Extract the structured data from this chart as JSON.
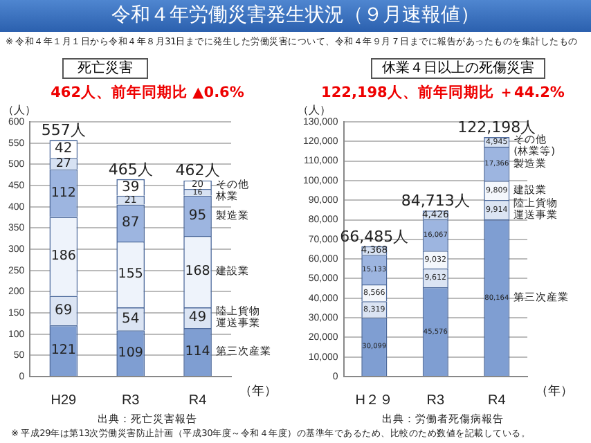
{
  "chart_data": [
    {
      "type": "other",
      "title": "令和４年労働災害発生状況（９月速報値）",
      "annotations": [
        "※ 令和４年１月１日から令和４年８月31日までに発生した労働災害について、令和４年９月７日までに報告があったものを集計したもの",
        "※ 平成29年は第13次労働災害防止計画（平成30年度～令和４年度）の基準年であるため、比較のため数値を記載している。"
      ]
    },
    {
      "type": "bar",
      "title": "死亡災害",
      "subtitle": "462人、前年同期比 ▲0.6%",
      "ylabel": "（人）",
      "xlabel": "（年）",
      "categories": [
        "H29",
        "R3",
        "R4"
      ],
      "stacked": true,
      "grid": "y",
      "data_labels": true,
      "legend": "right",
      "series": [
        {
          "name": "第三次産業",
          "color": "#7f9ed2",
          "values": [
            121,
            109,
            114
          ]
        },
        {
          "name": "陸上貨物運送事業",
          "color": "#dbe4f3",
          "values": [
            69,
            54,
            49
          ]
        },
        {
          "name": "建設業",
          "color": "#eef3fb",
          "values": [
            186,
            155,
            168
          ]
        },
        {
          "name": "製造業",
          "color": "#9db5e0",
          "values": [
            112,
            87,
            95
          ]
        },
        {
          "name": "林業",
          "color": "#d7e2f3",
          "values": [
            27,
            21,
            16
          ]
        },
        {
          "name": "その他",
          "color": "#ffffff",
          "values": [
            42,
            39,
            20
          ]
        }
      ],
      "totals": [
        "557人",
        "465人",
        "462人"
      ],
      "ylim": [
        0,
        600
      ],
      "yticks": [
        0,
        50,
        100,
        150,
        200,
        250,
        300,
        350,
        400,
        450,
        500,
        550,
        600
      ],
      "annotations": [
        "出典：死亡災害報告"
      ]
    },
    {
      "type": "bar",
      "title": "休業４日以上の死傷災害",
      "subtitle": "122,198人、前年同期比 ＋44.2%",
      "ylabel": "（人）",
      "xlabel": "（年）",
      "categories": [
        "H２９",
        "R3",
        "R4"
      ],
      "stacked": true,
      "grid": "y",
      "legend": "right",
      "series": [
        {
          "name": "第三次産業",
          "color": "#7f9ed2",
          "values": [
            30099,
            45576,
            80164
          ],
          "value_labels": [
            "30,099",
            "45,576",
            "80,164"
          ]
        },
        {
          "name": "陸上貨物運送事業",
          "color": "#dbe4f3",
          "values": [
            8319,
            9612,
            9914
          ],
          "value_labels": [
            "8,319",
            "9,612",
            "9,914"
          ]
        },
        {
          "name": "建設業",
          "color": "#f4f7fc",
          "values": [
            8566,
            9032,
            9809
          ],
          "value_labels": [
            "8,566",
            "9,032",
            "9,809"
          ]
        },
        {
          "name": "製造業",
          "color": "#9db5e0",
          "values": [
            15133,
            16067,
            17366
          ],
          "value_labels": [
            "15,133",
            "16,067",
            "17,366"
          ]
        },
        {
          "name": "その他(林業等)",
          "color": "#d7e2f3",
          "values": [
            4368,
            4426,
            4945
          ],
          "value_labels": [
            "4,368",
            "4,426",
            "4,945"
          ]
        }
      ],
      "totals": [
        "66,485人",
        "84,713人",
        "122,198人"
      ],
      "ylim": [
        0,
        130000
      ],
      "yticks": [
        {
          "value": 0,
          "label": "0"
        },
        {
          "value": 10000,
          "label": "10,000"
        },
        {
          "value": 20000,
          "label": "20,000"
        },
        {
          "value": 30000,
          "label": "30,000"
        },
        {
          "value": 40000,
          "label": "40,000"
        },
        {
          "value": 50000,
          "label": "50,000"
        },
        {
          "value": 60000,
          "label": "60,000"
        },
        {
          "value": 70000,
          "label": "70,000"
        },
        {
          "value": 80000,
          "label": "80,000"
        },
        {
          "value": 90000,
          "label": "90,000"
        },
        {
          "value": 100000,
          "label": "100,000"
        },
        {
          "value": 110000,
          "label": "110,000"
        },
        {
          "value": 120000,
          "label": "120,000"
        },
        {
          "value": 130000,
          "label": "130,000"
        }
      ],
      "annotations": [
        "出典：労働者死傷病報告"
      ]
    }
  ]
}
